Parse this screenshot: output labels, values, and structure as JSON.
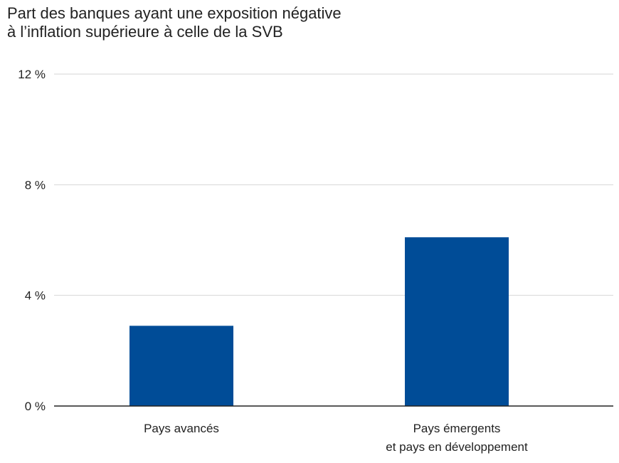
{
  "chart_data": {
    "type": "bar",
    "title_lines": [
      "Part des banques ayant une exposition négative",
      "à l’inflation supérieure à celle de la SVB"
    ],
    "categories": [
      [
        "Pays avancés"
      ],
      [
        "Pays émergents",
        "et pays en développement"
      ]
    ],
    "values": [
      2.9,
      6.1
    ],
    "ylim": [
      0,
      12
    ],
    "yticks": [
      0,
      4,
      8,
      12
    ],
    "ytick_labels": [
      "0 %",
      "4 %",
      "8 %",
      "12 %"
    ],
    "grid": true,
    "bar_color": "#004c97"
  }
}
